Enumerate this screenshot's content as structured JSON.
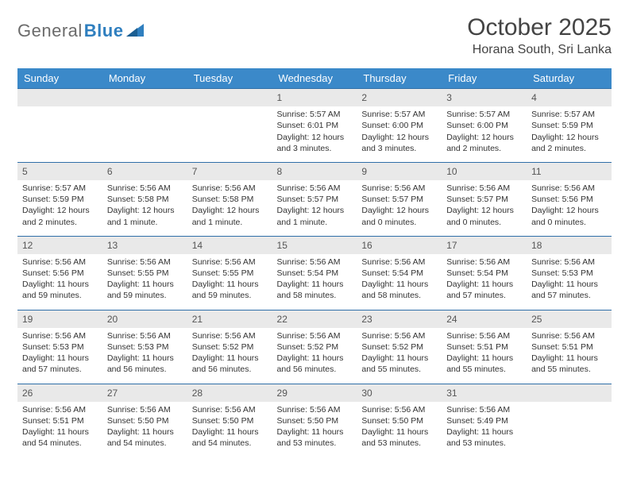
{
  "logo": {
    "text_gray": "General",
    "text_blue": "Blue"
  },
  "title": "October 2025",
  "location": "Horana South, Sri Lanka",
  "colors": {
    "header_bg": "#3b89c9",
    "header_text": "#ffffff",
    "row_border": "#2f6fa8",
    "daynum_bg": "#e9e9e9",
    "body_text": "#333333",
    "logo_gray": "#6b6b6b",
    "logo_blue": "#2f7fbf"
  },
  "weekdays": [
    "Sunday",
    "Monday",
    "Tuesday",
    "Wednesday",
    "Thursday",
    "Friday",
    "Saturday"
  ],
  "weeks": [
    [
      null,
      null,
      null,
      {
        "n": "1",
        "sr": "Sunrise: 5:57 AM",
        "ss": "Sunset: 6:01 PM",
        "dl": "Daylight: 12 hours and 3 minutes."
      },
      {
        "n": "2",
        "sr": "Sunrise: 5:57 AM",
        "ss": "Sunset: 6:00 PM",
        "dl": "Daylight: 12 hours and 3 minutes."
      },
      {
        "n": "3",
        "sr": "Sunrise: 5:57 AM",
        "ss": "Sunset: 6:00 PM",
        "dl": "Daylight: 12 hours and 2 minutes."
      },
      {
        "n": "4",
        "sr": "Sunrise: 5:57 AM",
        "ss": "Sunset: 5:59 PM",
        "dl": "Daylight: 12 hours and 2 minutes."
      }
    ],
    [
      {
        "n": "5",
        "sr": "Sunrise: 5:57 AM",
        "ss": "Sunset: 5:59 PM",
        "dl": "Daylight: 12 hours and 2 minutes."
      },
      {
        "n": "6",
        "sr": "Sunrise: 5:56 AM",
        "ss": "Sunset: 5:58 PM",
        "dl": "Daylight: 12 hours and 1 minute."
      },
      {
        "n": "7",
        "sr": "Sunrise: 5:56 AM",
        "ss": "Sunset: 5:58 PM",
        "dl": "Daylight: 12 hours and 1 minute."
      },
      {
        "n": "8",
        "sr": "Sunrise: 5:56 AM",
        "ss": "Sunset: 5:57 PM",
        "dl": "Daylight: 12 hours and 1 minute."
      },
      {
        "n": "9",
        "sr": "Sunrise: 5:56 AM",
        "ss": "Sunset: 5:57 PM",
        "dl": "Daylight: 12 hours and 0 minutes."
      },
      {
        "n": "10",
        "sr": "Sunrise: 5:56 AM",
        "ss": "Sunset: 5:57 PM",
        "dl": "Daylight: 12 hours and 0 minutes."
      },
      {
        "n": "11",
        "sr": "Sunrise: 5:56 AM",
        "ss": "Sunset: 5:56 PM",
        "dl": "Daylight: 12 hours and 0 minutes."
      }
    ],
    [
      {
        "n": "12",
        "sr": "Sunrise: 5:56 AM",
        "ss": "Sunset: 5:56 PM",
        "dl": "Daylight: 11 hours and 59 minutes."
      },
      {
        "n": "13",
        "sr": "Sunrise: 5:56 AM",
        "ss": "Sunset: 5:55 PM",
        "dl": "Daylight: 11 hours and 59 minutes."
      },
      {
        "n": "14",
        "sr": "Sunrise: 5:56 AM",
        "ss": "Sunset: 5:55 PM",
        "dl": "Daylight: 11 hours and 59 minutes."
      },
      {
        "n": "15",
        "sr": "Sunrise: 5:56 AM",
        "ss": "Sunset: 5:54 PM",
        "dl": "Daylight: 11 hours and 58 minutes."
      },
      {
        "n": "16",
        "sr": "Sunrise: 5:56 AM",
        "ss": "Sunset: 5:54 PM",
        "dl": "Daylight: 11 hours and 58 minutes."
      },
      {
        "n": "17",
        "sr": "Sunrise: 5:56 AM",
        "ss": "Sunset: 5:54 PM",
        "dl": "Daylight: 11 hours and 57 minutes."
      },
      {
        "n": "18",
        "sr": "Sunrise: 5:56 AM",
        "ss": "Sunset: 5:53 PM",
        "dl": "Daylight: 11 hours and 57 minutes."
      }
    ],
    [
      {
        "n": "19",
        "sr": "Sunrise: 5:56 AM",
        "ss": "Sunset: 5:53 PM",
        "dl": "Daylight: 11 hours and 57 minutes."
      },
      {
        "n": "20",
        "sr": "Sunrise: 5:56 AM",
        "ss": "Sunset: 5:53 PM",
        "dl": "Daylight: 11 hours and 56 minutes."
      },
      {
        "n": "21",
        "sr": "Sunrise: 5:56 AM",
        "ss": "Sunset: 5:52 PM",
        "dl": "Daylight: 11 hours and 56 minutes."
      },
      {
        "n": "22",
        "sr": "Sunrise: 5:56 AM",
        "ss": "Sunset: 5:52 PM",
        "dl": "Daylight: 11 hours and 56 minutes."
      },
      {
        "n": "23",
        "sr": "Sunrise: 5:56 AM",
        "ss": "Sunset: 5:52 PM",
        "dl": "Daylight: 11 hours and 55 minutes."
      },
      {
        "n": "24",
        "sr": "Sunrise: 5:56 AM",
        "ss": "Sunset: 5:51 PM",
        "dl": "Daylight: 11 hours and 55 minutes."
      },
      {
        "n": "25",
        "sr": "Sunrise: 5:56 AM",
        "ss": "Sunset: 5:51 PM",
        "dl": "Daylight: 11 hours and 55 minutes."
      }
    ],
    [
      {
        "n": "26",
        "sr": "Sunrise: 5:56 AM",
        "ss": "Sunset: 5:51 PM",
        "dl": "Daylight: 11 hours and 54 minutes."
      },
      {
        "n": "27",
        "sr": "Sunrise: 5:56 AM",
        "ss": "Sunset: 5:50 PM",
        "dl": "Daylight: 11 hours and 54 minutes."
      },
      {
        "n": "28",
        "sr": "Sunrise: 5:56 AM",
        "ss": "Sunset: 5:50 PM",
        "dl": "Daylight: 11 hours and 54 minutes."
      },
      {
        "n": "29",
        "sr": "Sunrise: 5:56 AM",
        "ss": "Sunset: 5:50 PM",
        "dl": "Daylight: 11 hours and 53 minutes."
      },
      {
        "n": "30",
        "sr": "Sunrise: 5:56 AM",
        "ss": "Sunset: 5:50 PM",
        "dl": "Daylight: 11 hours and 53 minutes."
      },
      {
        "n": "31",
        "sr": "Sunrise: 5:56 AM",
        "ss": "Sunset: 5:49 PM",
        "dl": "Daylight: 11 hours and 53 minutes."
      },
      null
    ]
  ]
}
